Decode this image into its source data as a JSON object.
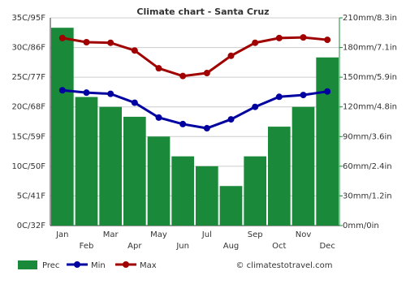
{
  "chart_data": {
    "type": "climate",
    "title": "Climate chart - Santa Cruz",
    "credit": "© climatestotravel.com",
    "categories": [
      "Jan",
      "Feb",
      "Mar",
      "Apr",
      "May",
      "Jun",
      "Jul",
      "Aug",
      "Sep",
      "Oct",
      "Nov",
      "Dec"
    ],
    "series": [
      {
        "name": "Prec",
        "type": "bar",
        "axis": "y2",
        "color": "#1a8a3a",
        "values": [
          200,
          130,
          120,
          110,
          90,
          70,
          60,
          40,
          70,
          100,
          120,
          170
        ]
      },
      {
        "name": "Min",
        "type": "line",
        "color": "#0000a0",
        "values": [
          22.8,
          22.4,
          22.2,
          20.7,
          18.2,
          17.1,
          16.4,
          17.9,
          20.0,
          21.7,
          22.0,
          22.6
        ]
      },
      {
        "name": "Max",
        "type": "line",
        "color": "#a00000",
        "values": [
          31.6,
          30.9,
          30.8,
          29.5,
          26.5,
          25.2,
          25.7,
          28.6,
          30.8,
          31.6,
          31.7,
          31.3
        ]
      }
    ],
    "ylim": [
      0,
      35
    ],
    "yticks": [
      {
        "value": 0,
        "label": "0C/32F"
      },
      {
        "value": 5,
        "label": "5C/41F"
      },
      {
        "value": 10,
        "label": "10C/50F"
      },
      {
        "value": 15,
        "label": "15C/59F"
      },
      {
        "value": 20,
        "label": "20C/68F"
      },
      {
        "value": 25,
        "label": "25C/77F"
      },
      {
        "value": 30,
        "label": "30C/86F"
      },
      {
        "value": 35,
        "label": "35C/95F"
      }
    ],
    "y2lim": [
      0,
      210
    ],
    "y2ticks": [
      {
        "value": 0,
        "label": "0mm/0in"
      },
      {
        "value": 30,
        "label": "30mm/1.2in"
      },
      {
        "value": 60,
        "label": "60mm/2.4in"
      },
      {
        "value": 90,
        "label": "90mm/3.6in"
      },
      {
        "value": 120,
        "label": "120mm/4.8in"
      },
      {
        "value": 150,
        "label": "150mm/5.9in"
      },
      {
        "value": 180,
        "label": "180mm/7.1in"
      },
      {
        "value": 210,
        "label": "210mm/8.3in"
      }
    ],
    "grid": true
  }
}
